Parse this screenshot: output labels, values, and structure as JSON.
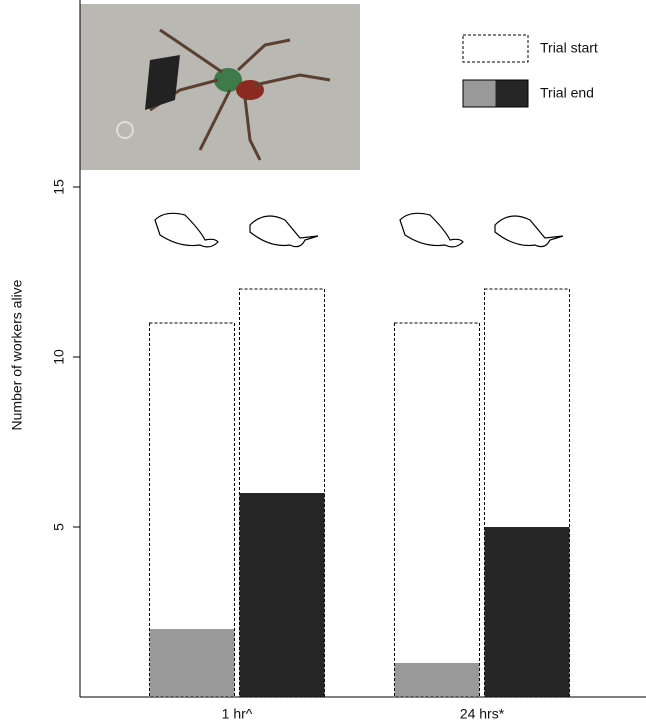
{
  "chart_data": {
    "type": "bar",
    "y_label": "Number of workers alive",
    "categories": [
      "1 hr^",
      "24 hrs*"
    ],
    "bars": [
      {
        "color": "#999999",
        "start": [
          11,
          11
        ],
        "end": [
          2,
          1
        ]
      },
      {
        "color": "#262626",
        "start": [
          12,
          12
        ],
        "end": [
          6,
          5
        ]
      }
    ],
    "legend": [
      {
        "label": "Trial start"
      },
      {
        "label": "Trial end",
        "colors": [
          "#999999",
          "#262626"
        ]
      }
    ],
    "ylim": [
      0,
      20.5
    ],
    "yticks": [
      5,
      10,
      15
    ]
  }
}
